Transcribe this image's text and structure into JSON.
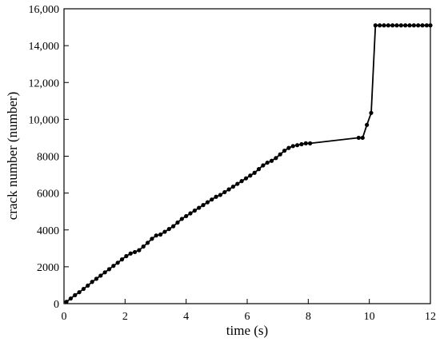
{
  "chart_data": {
    "type": "line",
    "xlabel": "time (s)",
    "ylabel": "crack number (number)",
    "xlim": [
      0,
      12
    ],
    "ylim": [
      0,
      16000
    ],
    "x_ticks": [
      0,
      2,
      4,
      6,
      8,
      10,
      12
    ],
    "x_tick_labels": [
      "0",
      "2",
      "4",
      "6",
      "8",
      "10",
      "12"
    ],
    "y_ticks": [
      0,
      2000,
      4000,
      6000,
      8000,
      10000,
      12000,
      14000,
      16000
    ],
    "y_tick_labels": [
      "0",
      "2000",
      "4000",
      "6000",
      "8000",
      "10,000",
      "12,000",
      "14,000",
      "16,000"
    ],
    "grid": false,
    "legend": "none",
    "line_color": "#000000",
    "marker": "circle",
    "series": [
      {
        "x": [
          0.08,
          0.22,
          0.36,
          0.5,
          0.64,
          0.78,
          0.92,
          1.06,
          1.2,
          1.34,
          1.48,
          1.62,
          1.76,
          1.9,
          2.04,
          2.18,
          2.32,
          2.46,
          2.6,
          2.74,
          2.88,
          3.02,
          3.16,
          3.3,
          3.44,
          3.58,
          3.72,
          3.86,
          4.0,
          4.14,
          4.28,
          4.42,
          4.56,
          4.7,
          4.84,
          4.98,
          5.12,
          5.26,
          5.4,
          5.54,
          5.68,
          5.82,
          5.96,
          6.1,
          6.24,
          6.38,
          6.52,
          6.66,
          6.8,
          6.94,
          7.08,
          7.22,
          7.36,
          7.5,
          7.64,
          7.78,
          7.92,
          8.06,
          9.65,
          9.78,
          9.92,
          10.06,
          10.2,
          10.34,
          10.48,
          10.62,
          10.76,
          10.9,
          11.04,
          11.18,
          11.32,
          11.46,
          11.6,
          11.74,
          11.88,
          12.0
        ],
        "y": [
          100,
          280,
          460,
          620,
          800,
          980,
          1180,
          1350,
          1520,
          1700,
          1870,
          2050,
          2220,
          2400,
          2580,
          2720,
          2800,
          2900,
          3100,
          3300,
          3520,
          3700,
          3750,
          3900,
          4050,
          4200,
          4400,
          4600,
          4750,
          4900,
          5050,
          5200,
          5350,
          5500,
          5650,
          5800,
          5900,
          6050,
          6200,
          6350,
          6500,
          6650,
          6800,
          6950,
          7100,
          7300,
          7500,
          7650,
          7750,
          7900,
          8100,
          8300,
          8450,
          8550,
          8600,
          8650,
          8700,
          8700,
          9000,
          9000,
          9700,
          10350,
          15100,
          15100,
          15100,
          15100,
          15100,
          15100,
          15100,
          15100,
          15100,
          15100,
          15100,
          15100,
          15100,
          15100
        ]
      }
    ]
  }
}
